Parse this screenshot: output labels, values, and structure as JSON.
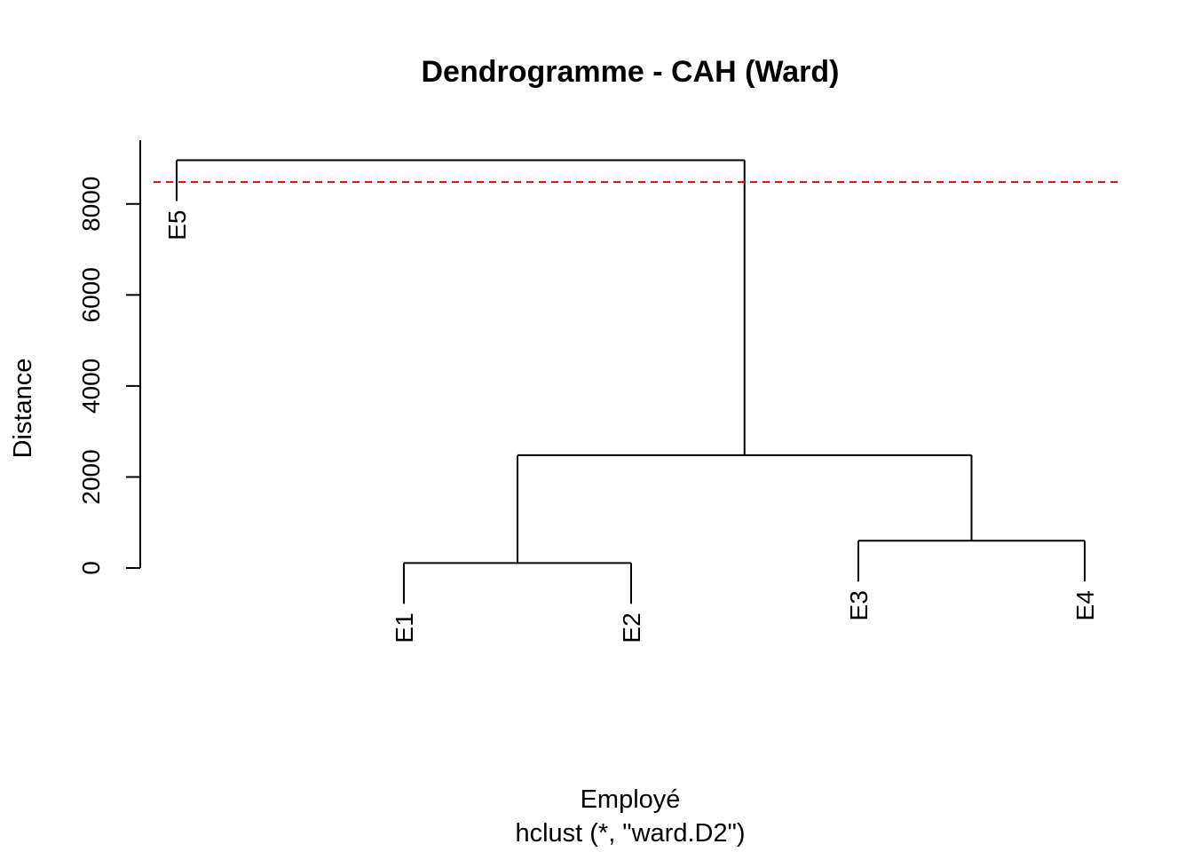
{
  "chart_data": {
    "type": "dendrogram",
    "title": "Dendrogramme - CAH (Ward)",
    "xlabel": "Employé",
    "sub": "hclust (*, \"ward.D2\")",
    "ylabel": "Distance",
    "ylim": [
      0,
      9000
    ],
    "yticks": [
      0,
      2000,
      4000,
      6000,
      8000
    ],
    "cut_height": 8480,
    "cut_color": "#e00000",
    "leaves": [
      "E5",
      "E1",
      "E2",
      "E3",
      "E4"
    ],
    "merges": [
      {
        "a": "E1",
        "b": "E2",
        "height": 110
      },
      {
        "a": "E3",
        "b": "E4",
        "height": 600
      },
      {
        "a": "(E1,E2)",
        "b": "(E3,E4)",
        "height": 2480
      },
      {
        "a": "E5",
        "b": "(E1,E2,E3,E4)",
        "height": 8960
      }
    ]
  }
}
